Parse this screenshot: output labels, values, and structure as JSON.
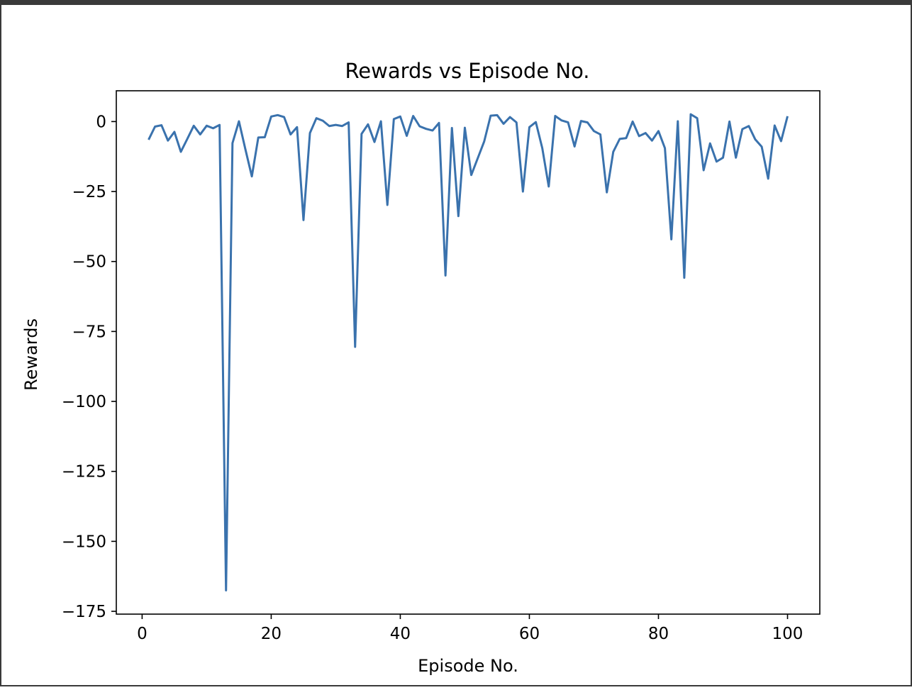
{
  "chart_data": {
    "type": "line",
    "title": "Rewards vs Episode No.",
    "xlabel": "Episode No.",
    "ylabel": "Rewards",
    "xlim": [
      -4,
      105
    ],
    "ylim": [
      -176,
      11
    ],
    "xticks": [
      {
        "value": 0,
        "label": "0"
      },
      {
        "value": 20,
        "label": "20"
      },
      {
        "value": 40,
        "label": "40"
      },
      {
        "value": 60,
        "label": "60"
      },
      {
        "value": 80,
        "label": "80"
      },
      {
        "value": 100,
        "label": "100"
      }
    ],
    "yticks": [
      {
        "value": 0,
        "label": "0"
      },
      {
        "value": -25,
        "label": "−25"
      },
      {
        "value": -50,
        "label": "−50"
      },
      {
        "value": -75,
        "label": "−75"
      },
      {
        "value": -100,
        "label": "−100"
      },
      {
        "value": -125,
        "label": "−125"
      },
      {
        "value": -150,
        "label": "−150"
      },
      {
        "value": -175,
        "label": "−175"
      }
    ],
    "grid": false,
    "line_color": "#3a72ad",
    "series": [
      {
        "x": [
          1,
          2,
          3,
          4,
          5,
          6,
          7,
          8,
          9,
          10,
          11,
          12,
          13,
          14,
          15,
          16,
          17,
          18,
          19,
          20,
          21,
          22,
          23,
          24,
          25,
          26,
          27,
          28,
          29,
          30,
          31,
          32,
          33,
          34,
          35,
          36,
          37,
          38,
          39,
          40,
          41,
          42,
          43,
          44,
          45,
          46,
          47,
          48,
          49,
          50,
          51,
          52,
          53,
          54,
          55,
          56,
          57,
          58,
          59,
          60,
          61,
          62,
          63,
          64,
          65,
          66,
          67,
          68,
          69,
          70,
          71,
          72,
          73,
          74,
          75,
          76,
          77,
          78,
          79,
          80,
          81,
          82,
          83,
          84,
          85,
          86,
          87,
          88,
          89,
          90,
          91,
          92,
          93,
          94,
          95,
          96,
          97,
          98,
          99,
          100
        ],
        "values": [
          -6.5,
          -1.8,
          -1.3,
          -6.8,
          -3.7,
          -10.8,
          -6.2,
          -1.5,
          -4.6,
          -1.5,
          -2.4,
          -1.2,
          -167.5,
          -7.7,
          0.1,
          -9.9,
          -19.6,
          -5.7,
          -5.6,
          1.8,
          2.3,
          1.6,
          -4.6,
          -2.0,
          -35.2,
          -4.1,
          1.2,
          0.3,
          -1.6,
          -1.2,
          -1.6,
          -0.3,
          -80.5,
          -4.4,
          -1.0,
          -7.3,
          0.1,
          -29.8,
          0.9,
          1.8,
          -5.1,
          2.0,
          -1.7,
          -2.6,
          -3.2,
          -0.5,
          -55.0,
          -2.3,
          -33.8,
          -2.2,
          -19.1,
          -13.1,
          -7.1,
          2.1,
          2.3,
          -0.8,
          1.6,
          -0.3,
          -25.0,
          -2.0,
          -0.2,
          -9.5,
          -23.2,
          2.0,
          0.4,
          -0.3,
          -8.9,
          0.2,
          -0.3,
          -3.4,
          -4.6,
          -25.3,
          -10.8,
          -6.2,
          -5.9,
          0.0,
          -5.2,
          -4.1,
          -6.8,
          -3.4,
          -9.5,
          -42.1,
          0.1,
          -55.8,
          2.6,
          1.2,
          -17.4,
          -7.8,
          -14.3,
          -12.9,
          0.0,
          -12.9,
          -2.7,
          -1.6,
          -6.4,
          -9.0,
          -20.4,
          -1.4,
          -7.0,
          1.9
        ]
      }
    ]
  }
}
